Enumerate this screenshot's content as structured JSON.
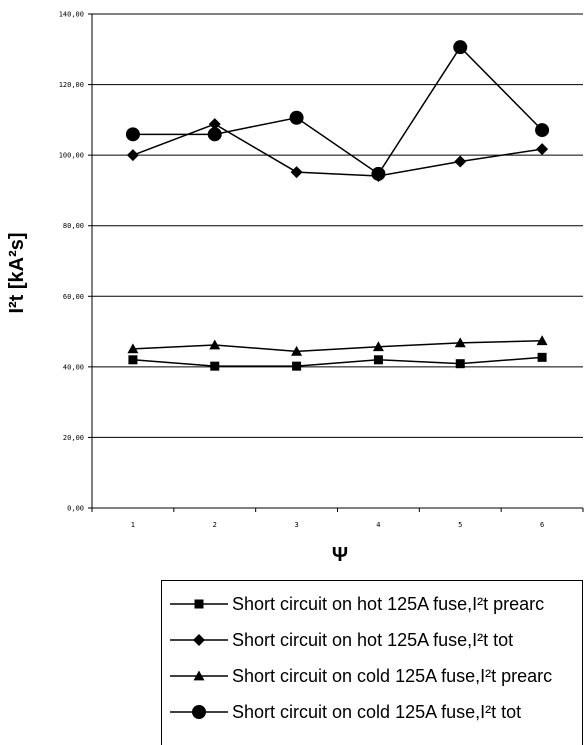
{
  "chart_data": {
    "type": "line",
    "title": "",
    "xlabel": "Ψ",
    "ylabel": "I²t [kA²s]",
    "x": [
      1,
      2,
      3,
      4,
      5,
      6
    ],
    "xtick_labels": [
      "1",
      "2",
      "3",
      "4",
      "5",
      "6"
    ],
    "ylim": [
      0,
      140
    ],
    "ytick_labels": [
      "0,00",
      "20,00",
      "40,00",
      "60,00",
      "80,00",
      "100,00",
      "120,00",
      "140,00"
    ],
    "grid": true,
    "legend_position": "bottom",
    "series": [
      {
        "name": "Short circuit on hot 125A fuse,I²t prearc",
        "marker": "square",
        "color": "#000000",
        "values": [
          42.0,
          40.2,
          40.2,
          42.0,
          40.9,
          42.7
        ]
      },
      {
        "name": "Short circuit on hot 125A fuse,I²t tot",
        "marker": "diamond",
        "color": "#000000",
        "values": [
          100.0,
          108.8,
          95.2,
          94.1,
          98.2,
          101.7
        ]
      },
      {
        "name": "Short circuit on cold 125A fuse,I²t prearc",
        "marker": "triangle",
        "color": "#000000",
        "values": [
          45.1,
          46.2,
          44.4,
          45.7,
          46.8,
          47.4
        ]
      },
      {
        "name": "Short circuit on cold 125A fuse,I²t tot",
        "marker": "circle",
        "color": "#000000",
        "values": [
          105.9,
          105.9,
          110.6,
          94.7,
          130.6,
          107.1
        ]
      }
    ]
  }
}
